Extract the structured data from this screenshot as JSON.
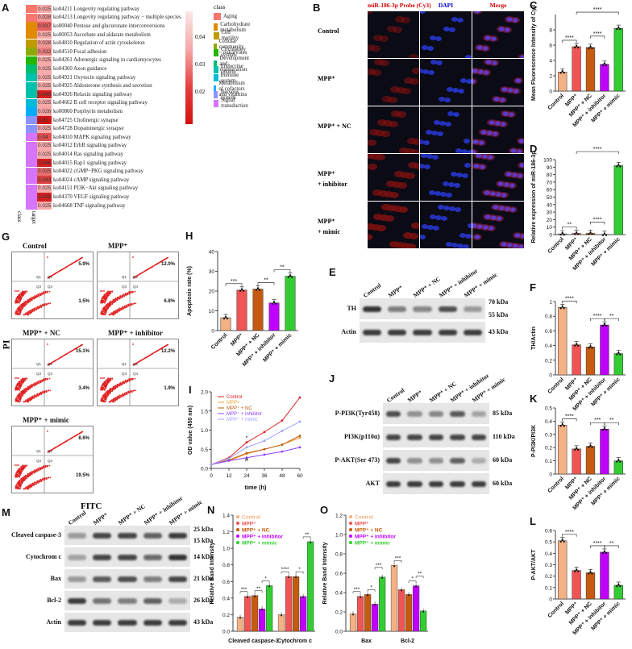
{
  "panelA": {
    "letter": "A",
    "rows": [
      {
        "id": "ko04211",
        "name": "Longevity regulating pathway",
        "val": "0.025",
        "cls": "#f8766d"
      },
      {
        "id": "ko04213",
        "name": "Longevity regulating pathway − multiple species",
        "val": "0.028",
        "cls": "#f8766d"
      },
      {
        "id": "ko00040",
        "name": "Pentose and glucuronate interconversions",
        "val": "0.037",
        "cls": "#e18a00"
      },
      {
        "id": "ko00053",
        "name": "Ascorbate and aldarate metabolism",
        "val": "0.025",
        "cls": "#e18a00"
      },
      {
        "id": "ko04810",
        "name": "Regulation of actin cytoskeleton",
        "val": "0.028",
        "cls": "#be9c00"
      },
      {
        "id": "ko04510",
        "name": "Focal adhesion",
        "val": "0.032",
        "cls": "#8cab00"
      },
      {
        "id": "ko04261",
        "name": "Adrenergic signaling in cardiomyocytes",
        "val": "0.025",
        "cls": "#24b700"
      },
      {
        "id": "ko04360",
        "name": "Axon guidance",
        "val": "0.025",
        "cls": "#00be70"
      },
      {
        "id": "ko04921",
        "name": "Oxytocin signaling pathway",
        "val": "0.025",
        "cls": "#00c1ab"
      },
      {
        "id": "ko04925",
        "name": "Aldosterone synthesis and secretion",
        "val": "0.025",
        "cls": "#00c1ab"
      },
      {
        "id": "ko04926",
        "name": "Relaxin signaling pathway",
        "val": "0.048",
        "cls": "#00c1ab"
      },
      {
        "id": "ko04662",
        "name": "B cell receptor signaling pathway",
        "val": "0.025",
        "cls": "#00bbda"
      },
      {
        "id": "ko00860",
        "name": "Porphyrin metabolism",
        "val": "0.026",
        "cls": "#00acfc"
      },
      {
        "id": "ko04725",
        "name": "Cholinergic synapse",
        "val": "0.05",
        "cls": "#8b93ff"
      },
      {
        "id": "ko04728",
        "name": "Dopaminergic synapse",
        "val": "0.025",
        "cls": "#8b93ff"
      },
      {
        "id": "ko04010",
        "name": "MAPK signaling pathway",
        "val": "0.04",
        "cls": "#d575fe"
      },
      {
        "id": "ko04012",
        "name": "ErbB signaling pathway",
        "val": "0.025",
        "cls": "#d575fe"
      },
      {
        "id": "ko04014",
        "name": "Ras signaling pathway",
        "val": "0.025",
        "cls": "#d575fe"
      },
      {
        "id": "ko04015",
        "name": "Rap1 signaling pathway",
        "val": "0.048",
        "cls": "#d575fe"
      },
      {
        "id": "ko04022",
        "name": "cGMP−PKG signaling pathway",
        "val": "0.035",
        "cls": "#d575fe"
      },
      {
        "id": "ko04024",
        "name": "cAMP signaling pathway",
        "val": "0.043",
        "cls": "#d575fe"
      },
      {
        "id": "ko04151",
        "name": "PI3K−Akt signaling pathway",
        "val": "0.025",
        "cls": "#d575fe"
      },
      {
        "id": "ko04370",
        "name": "VEGF signaling pathway",
        "val": "0.048",
        "cls": "#d575fe"
      },
      {
        "id": "ko04668",
        "name": "TNF signaling pathway",
        "val": "0.025",
        "cls": "#d575fe"
      }
    ],
    "col_class": "class",
    "col_target": "target",
    "scale_ticks": [
      "0.04",
      "0.03",
      "0.02"
    ],
    "legend_title": "class",
    "legend": [
      {
        "label": "Aging",
        "color": "#f8766d"
      },
      {
        "label": "Carbohydrate metabolism",
        "color": "#e18a00"
      },
      {
        "label": "Cell motility",
        "color": "#be9c00"
      },
      {
        "label": "Cellular community − eukaryotes",
        "color": "#8cab00"
      },
      {
        "label": "Circulatory system",
        "color": "#24b700"
      },
      {
        "label": "Development and regeneration",
        "color": "#00be70"
      },
      {
        "label": "Endocrine system",
        "color": "#00c1ab"
      },
      {
        "label": "Immune system",
        "color": "#00bbda"
      },
      {
        "label": "Metabolism of cofactors and vitamins",
        "color": "#00acfc"
      },
      {
        "label": "Nervous system",
        "color": "#8b93ff"
      },
      {
        "label": "Signal transduction",
        "color": "#d575fe"
      }
    ]
  },
  "panelB": {
    "letter": "B",
    "cols": [
      "miR-186-3p Probe (Cy3)",
      "DAPI",
      "Merge"
    ],
    "col_colors": [
      "#d40000",
      "#0000cc",
      "#d40000"
    ],
    "rows": [
      "Control",
      "MPP⁺",
      "MPP⁺ + NC",
      "MPP⁺\n+ inhibitor",
      "MPP⁺\n+ mimic"
    ]
  },
  "groups": [
    "Control",
    "MPP⁺",
    "MPP⁺ + NC",
    "MPP⁺ + inhibitor",
    "MPP⁺ + mimic"
  ],
  "group_colors": [
    "#f4b183",
    "#f05454",
    "#c55a11",
    "#c000ff",
    "#33cc33"
  ],
  "charts": {
    "C": {
      "letter": "C",
      "ylabel": "Mean Fluorescence Intensity of Cy3",
      "ylim": [
        0,
        10
      ],
      "ticks": [
        0,
        2,
        4,
        6,
        8
      ],
      "values": [
        2.5,
        5.8,
        5.7,
        3.5,
        8.2
      ],
      "sig": [
        "****",
        "****",
        "****"
      ]
    },
    "D": {
      "letter": "D",
      "ylabel": "Relative expression of miR-186-3p",
      "ylim": [
        0,
        100
      ],
      "ticks": [
        0,
        10,
        20,
        30,
        40,
        50,
        60,
        70,
        80,
        90,
        100
      ],
      "values": [
        1,
        1.6,
        1.7,
        0.3,
        92
      ],
      "sig": [
        "**",
        "****",
        "****"
      ]
    },
    "H": {
      "letter": "H",
      "ylabel": "Apoptosis rate (%)",
      "ylim": [
        0,
        40
      ],
      "ticks": [
        0,
        10,
        20,
        30,
        40
      ],
      "values": [
        6.5,
        20.5,
        21,
        14,
        27.5
      ],
      "sig": [
        "***",
        "**",
        "**"
      ]
    },
    "F": {
      "letter": "F",
      "ylabel": "TH/Actin",
      "ylim": [
        0,
        1.0
      ],
      "ticks": [
        0.0,
        0.2,
        0.4,
        0.6,
        0.8,
        1.0
      ],
      "values": [
        0.92,
        0.41,
        0.38,
        0.68,
        0.29
      ],
      "sig": [
        "****",
        "****",
        "**"
      ]
    },
    "K": {
      "letter": "K",
      "ylabel": "P-PI3K/PI3K",
      "ylim": [
        0,
        0.5
      ],
      "ticks": [
        0.0,
        0.1,
        0.2,
        0.3,
        0.4,
        0.5
      ],
      "values": [
        0.37,
        0.19,
        0.21,
        0.34,
        0.1
      ],
      "sig": [
        "****",
        "***",
        "**"
      ]
    },
    "L": {
      "letter": "L",
      "ylabel": "P-AKT/AKT",
      "ylim": [
        0,
        0.6
      ],
      "ticks": [
        0.0,
        0.1,
        0.2,
        0.3,
        0.4,
        0.5,
        0.6
      ],
      "values": [
        0.51,
        0.25,
        0.23,
        0.41,
        0.12
      ],
      "sig": [
        "****",
        "****",
        "**"
      ]
    }
  },
  "panelI": {
    "letter": "I",
    "ylabel": "OD value (450 nm)",
    "xlabel": "time (h)",
    "x": [
      0,
      12,
      24,
      36,
      48,
      60
    ],
    "ylim": [
      0,
      2.0
    ],
    "yticks": [
      0.0,
      0.5,
      1.0,
      1.5,
      2.0
    ],
    "legend": [
      "Control",
      "MPP+",
      "MPP⁺ + NC",
      "MPP⁺ + inhibitor",
      "MPP⁺ + mimic"
    ],
    "series": [
      {
        "values": [
          0.1,
          0.28,
          0.68,
          0.95,
          1.25,
          1.85
        ]
      },
      {
        "values": [
          0.1,
          0.2,
          0.38,
          0.5,
          0.62,
          0.8
        ]
      },
      {
        "values": [
          0.1,
          0.22,
          0.4,
          0.5,
          0.62,
          0.85
        ]
      },
      {
        "values": [
          0.1,
          0.2,
          0.28,
          0.36,
          0.44,
          0.55
        ]
      },
      {
        "values": [
          0.1,
          0.26,
          0.55,
          0.72,
          0.98,
          1.22
        ]
      }
    ],
    "marks": [
      "*",
      "#"
    ]
  },
  "panelG": {
    "letter": "G",
    "ylabel": "PI",
    "xlabel": "FITC",
    "plots": [
      {
        "title": "Control",
        "ur": "5.9%",
        "lr": "1.5%"
      },
      {
        "title": "MPP⁺",
        "ur": "12.0%",
        "lr": "6.8%"
      },
      {
        "title": "MPP⁺ + NC",
        "ur": "15.1%",
        "lr": "3.4%"
      },
      {
        "title": "MPP⁺ + inhibitor",
        "ur": "12.2%",
        "lr": "1.9%"
      },
      {
        "title": "MPP⁺ + mimic",
        "ur": "8.6%",
        "lr": "19.5%"
      }
    ],
    "quads": [
      "Q1",
      "Q2",
      "Q3",
      "Q4"
    ]
  },
  "panelE": {
    "letter": "E",
    "rows": [
      {
        "label": "TH",
        "kda": "70 kDa",
        "kda2": "55 kDa"
      },
      {
        "label": "Actin",
        "kda": "43 kDa"
      }
    ]
  },
  "panelJ": {
    "letter": "J",
    "rows": [
      {
        "label": "P-PI3K(Tyr458)",
        "kda": "85 kDa"
      },
      {
        "label": "PI3K(p110α)",
        "kda": "110 kDa"
      },
      {
        "label": "P-AKT(Ser 473)",
        "kda": "60 kDa"
      },
      {
        "label": "AKT",
        "kda": "60 kDa"
      }
    ]
  },
  "panelM": {
    "letter": "M",
    "rows": [
      {
        "label": "Cleaved caspase-3",
        "kda": "25 kDa",
        "kda2": "15 kDa"
      },
      {
        "label": "Cytochrom c",
        "kda": "14 kDa"
      },
      {
        "label": "Bax",
        "kda": "21 kDa"
      },
      {
        "label": "Bcl-2",
        "kda": "26 kDa"
      },
      {
        "label": "Actin",
        "kda": "43 kDa"
      }
    ]
  },
  "panelN": {
    "letter": "N",
    "ylabel": "Relative Band Intensity",
    "ylim": [
      0,
      1.4
    ],
    "yticks": [
      0.0,
      0.2,
      0.4,
      0.6,
      0.8,
      1.0,
      1.2,
      1.4
    ],
    "categories": [
      "Cleaved caspase-3",
      "Cytochrom c"
    ],
    "values": [
      [
        0.17,
        0.42,
        0.43,
        0.27,
        0.55
      ],
      [
        0.2,
        0.66,
        0.66,
        0.42,
        1.08
      ]
    ],
    "legend": [
      "Control",
      "MPP⁺",
      "MPP⁺ + NC",
      "MPP⁺ + inhibitor",
      "MPP⁺ + mimic"
    ],
    "sig": [
      "***",
      "**",
      "*",
      "****",
      "*",
      "**"
    ]
  },
  "panelO": {
    "letter": "O",
    "ylabel": "Relative Band Intensity",
    "ylim": [
      0,
      1.2
    ],
    "yticks": [
      0.0,
      0.2,
      0.4,
      0.6,
      0.8,
      1.0,
      1.2
    ],
    "categories": [
      "Bax",
      "Bcl-2"
    ],
    "values": [
      [
        0.18,
        0.36,
        0.38,
        0.28,
        0.56
      ],
      [
        0.68,
        0.43,
        0.38,
        0.47,
        0.21
      ]
    ],
    "legend": [
      "Control",
      "MPP⁺",
      "MPP⁺ + NC",
      "MPP⁺ + inhibitor",
      "MPP⁺ + mimic"
    ],
    "sig": [
      "***",
      "*",
      "***",
      "***",
      "*",
      "**"
    ]
  }
}
